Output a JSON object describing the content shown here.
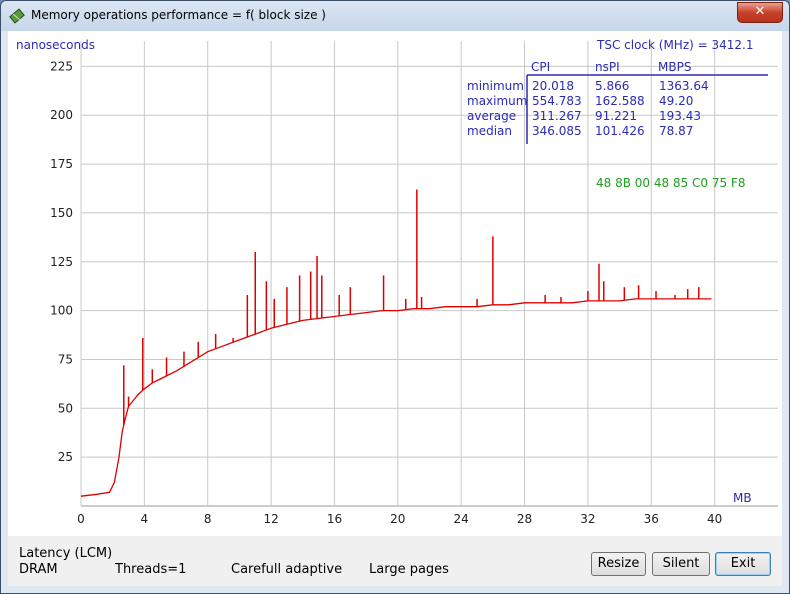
{
  "window": {
    "title": "Memory operations performance = f( block size )",
    "close_label": "✕"
  },
  "chart": {
    "y_unit": "nanoseconds",
    "x_unit": "MB",
    "y_ticks": [
      "25",
      "50",
      "75",
      "100",
      "125",
      "150",
      "175",
      "200",
      "225"
    ],
    "x_ticks": [
      "0",
      "4",
      "8",
      "12",
      "16",
      "20",
      "24",
      "28",
      "32",
      "36",
      "40"
    ],
    "tsc_label": "TSC clock (MHz)  = 3412.1",
    "stats": {
      "columns": [
        "CPI",
        "nsPI",
        "MBPS"
      ],
      "rows": [
        {
          "name": "minimum",
          "cpi": "20.018",
          "nspi": "5.866",
          "mbps": "1363.64"
        },
        {
          "name": "maximum",
          "cpi": "554.783",
          "nspi": "162.588",
          "mbps": "49.20"
        },
        {
          "name": "average",
          "cpi": "311.267",
          "nspi": "91.221",
          "mbps": "193.43"
        },
        {
          "name": "median",
          "cpi": "346.085",
          "nspi": "101.426",
          "mbps": "78.87"
        }
      ]
    },
    "opcode": "48  8B  00   48  85  C0  75  F8"
  },
  "chart_data": {
    "type": "line",
    "xlabel": "MB",
    "ylabel": "nanoseconds",
    "xlim": [
      0,
      44
    ],
    "ylim": [
      0,
      238
    ],
    "grid": true,
    "series": [
      {
        "color": "#dd0000",
        "x": [
          0,
          1,
          1.8,
          2.1,
          2.4,
          2.6,
          2.8,
          3.0,
          3.3,
          3.6,
          4.0,
          4.5,
          5,
          6,
          7,
          8,
          9,
          10,
          11,
          12,
          13,
          14,
          15,
          16,
          17,
          18,
          19,
          20,
          21,
          22,
          23,
          24,
          25,
          26,
          27,
          28,
          29,
          30,
          31,
          32,
          33,
          34,
          35,
          36,
          37,
          38,
          39,
          39.8
        ],
        "y": [
          5,
          6,
          7,
          12,
          25,
          38,
          45,
          51,
          54,
          57,
          60,
          63,
          65,
          69,
          74,
          79,
          82,
          85,
          88,
          91,
          93,
          95,
          96,
          97,
          98,
          99,
          100,
          100,
          101,
          101,
          102,
          102,
          102,
          103,
          103,
          104,
          104,
          104,
          104,
          105,
          105,
          105,
          106,
          106,
          106,
          106,
          106,
          106
        ]
      }
    ],
    "spikes": [
      {
        "x": 2.7,
        "y": 72
      },
      {
        "x": 3.0,
        "y": 56
      },
      {
        "x": 3.9,
        "y": 86
      },
      {
        "x": 4.5,
        "y": 70
      },
      {
        "x": 5.4,
        "y": 76
      },
      {
        "x": 6.5,
        "y": 79
      },
      {
        "x": 7.4,
        "y": 84
      },
      {
        "x": 8.5,
        "y": 88
      },
      {
        "x": 9.6,
        "y": 86
      },
      {
        "x": 10.5,
        "y": 108
      },
      {
        "x": 11.0,
        "y": 130
      },
      {
        "x": 11.7,
        "y": 115
      },
      {
        "x": 12.2,
        "y": 106
      },
      {
        "x": 13.0,
        "y": 112
      },
      {
        "x": 13.8,
        "y": 118
      },
      {
        "x": 14.5,
        "y": 120
      },
      {
        "x": 14.9,
        "y": 128
      },
      {
        "x": 15.2,
        "y": 118
      },
      {
        "x": 16.3,
        "y": 108
      },
      {
        "x": 17.0,
        "y": 112
      },
      {
        "x": 19.1,
        "y": 118
      },
      {
        "x": 20.5,
        "y": 106
      },
      {
        "x": 21.2,
        "y": 162
      },
      {
        "x": 21.5,
        "y": 107
      },
      {
        "x": 25.0,
        "y": 106
      },
      {
        "x": 26.0,
        "y": 138
      },
      {
        "x": 29.3,
        "y": 108
      },
      {
        "x": 30.3,
        "y": 107
      },
      {
        "x": 32.0,
        "y": 110
      },
      {
        "x": 32.7,
        "y": 124
      },
      {
        "x": 33.0,
        "y": 115
      },
      {
        "x": 34.3,
        "y": 112
      },
      {
        "x": 35.2,
        "y": 113
      },
      {
        "x": 36.3,
        "y": 110
      },
      {
        "x": 37.5,
        "y": 108
      },
      {
        "x": 38.3,
        "y": 111
      },
      {
        "x": 39.0,
        "y": 112
      }
    ]
  },
  "footer": {
    "latency": "Latency (LCM)",
    "memory": "DRAM",
    "threads": "Threads=1",
    "mode": "Carefull adaptive",
    "pages": "Large pages",
    "resize": "Resize",
    "silent": "Silent",
    "exit": "Exit"
  },
  "colors": {
    "axis_text": "#2b2bb5",
    "series": "#dd0000",
    "opcode": "#1e9e1e",
    "grid": "#c8c8c8"
  }
}
